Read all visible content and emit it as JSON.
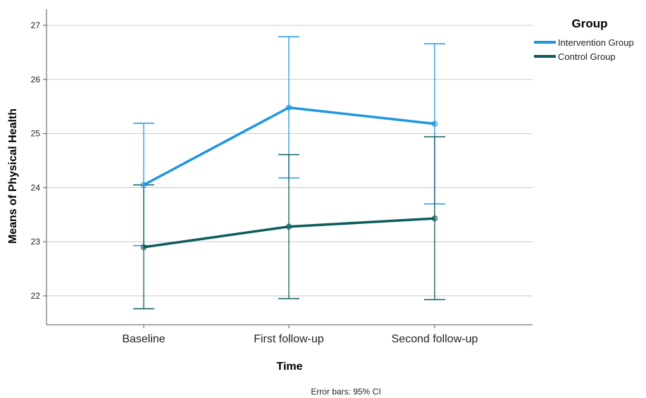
{
  "chart_data": {
    "type": "line",
    "xlabel": "Time",
    "ylabel": "Means of Physical Health",
    "categories": [
      "Baseline",
      "First follow-up",
      "Second follow-up"
    ],
    "ylim": [
      21.5,
      27.3
    ],
    "yticks": [
      22,
      23,
      24,
      25,
      26,
      27
    ],
    "grid": "horizontal",
    "legend": {
      "title": "Group",
      "position": "top-right"
    },
    "error_bars": "95% CI",
    "footnote": "Error bars: 95% CI",
    "series": [
      {
        "name": "Intervention Group",
        "color": "#1f96e0",
        "values": [
          24.05,
          25.48,
          25.18
        ],
        "ci_lower": [
          22.93,
          24.18,
          23.7
        ],
        "ci_upper": [
          25.19,
          26.79,
          26.66
        ]
      },
      {
        "name": "Control Group",
        "color": "#0e5c5c",
        "values": [
          22.9,
          23.28,
          23.43
        ],
        "ci_lower": [
          21.76,
          21.95,
          21.93
        ],
        "ci_upper": [
          24.05,
          24.61,
          24.94
        ]
      }
    ]
  }
}
